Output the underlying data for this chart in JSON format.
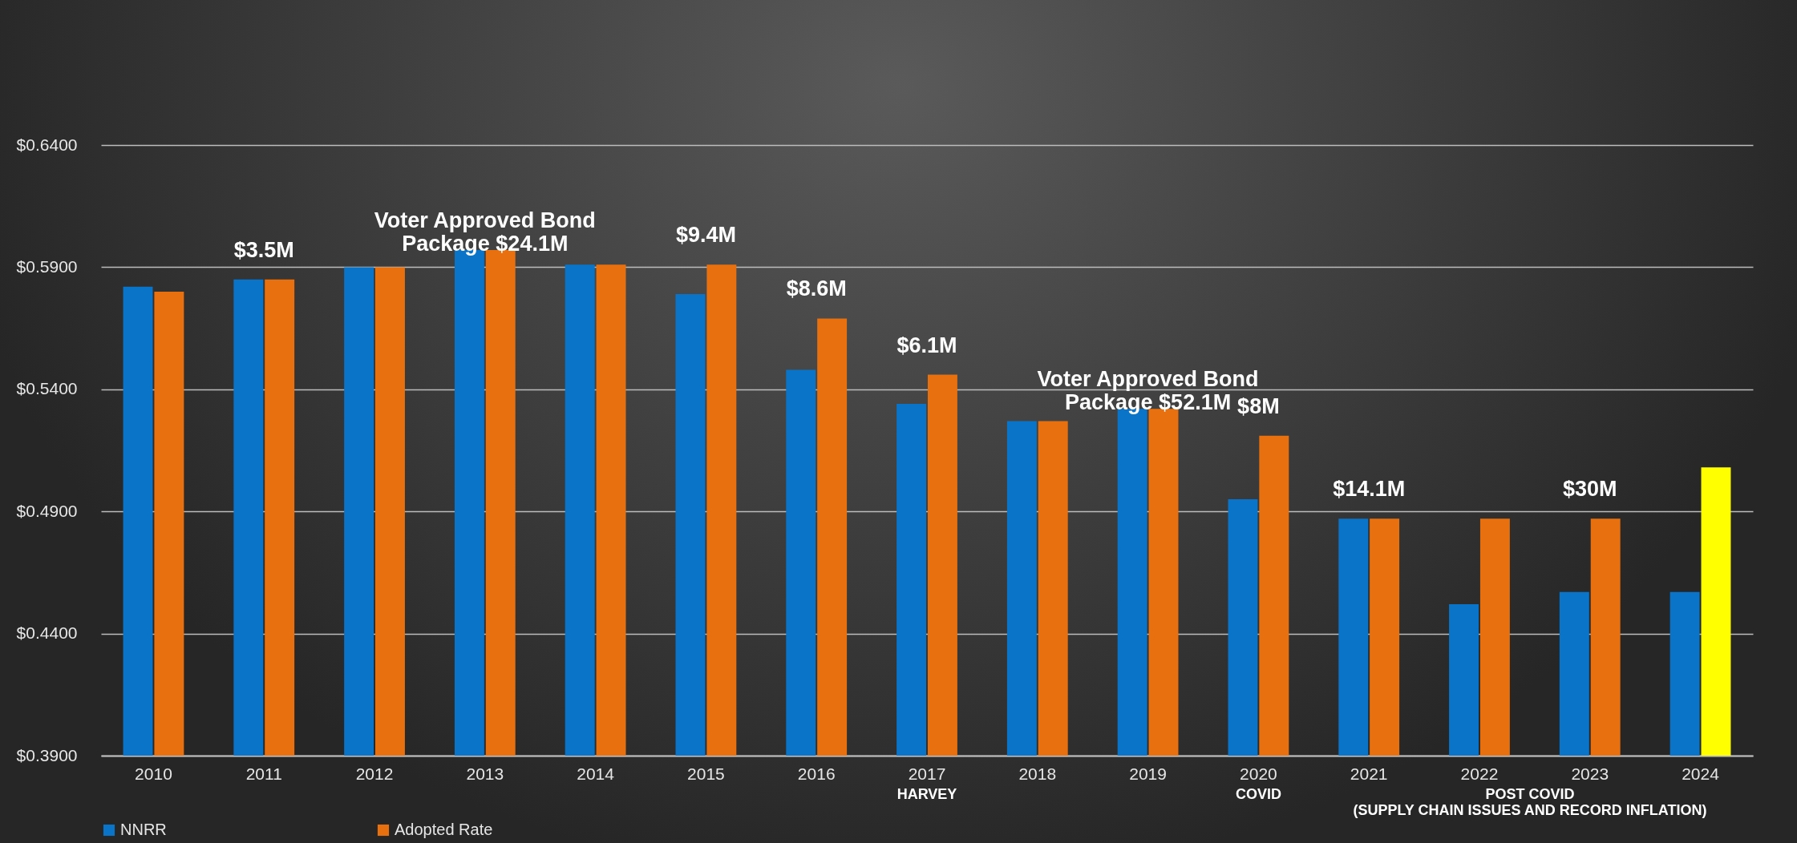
{
  "chart_data": {
    "type": "bar",
    "categories": [
      "2010",
      "2011",
      "2012",
      "2013",
      "2014",
      "2015",
      "2016",
      "2017",
      "2018",
      "2019",
      "2020",
      "2021",
      "2022",
      "2023",
      "2024"
    ],
    "series": [
      {
        "name": "NNRR",
        "color": "#0a74c9",
        "values": [
          0.582,
          0.585,
          0.59,
          0.597,
          0.591,
          0.579,
          0.548,
          0.534,
          0.527,
          0.532,
          0.495,
          0.487,
          0.452,
          0.457,
          0.457
        ]
      },
      {
        "name": "Adopted Rate",
        "color": "#e8700f",
        "colors": [
          "#e8700f",
          "#e8700f",
          "#e8700f",
          "#e8700f",
          "#e8700f",
          "#e8700f",
          "#e8700f",
          "#e8700f",
          "#e8700f",
          "#e8700f",
          "#e8700f",
          "#e8700f",
          "#e8700f",
          "#e8700f",
          "#ffff00"
        ],
        "values": [
          0.58,
          0.585,
          0.59,
          0.597,
          0.591,
          0.591,
          0.569,
          0.546,
          0.527,
          0.532,
          0.521,
          0.487,
          0.487,
          0.487,
          0.508
        ]
      }
    ],
    "ylim": [
      0.39,
      0.64
    ],
    "yticks": [
      {
        "value": 0.39,
        "label": "$0.3900"
      },
      {
        "value": 0.44,
        "label": "$0.4400"
      },
      {
        "value": 0.49,
        "label": "$0.4900"
      },
      {
        "value": 0.54,
        "label": "$0.5400"
      },
      {
        "value": 0.59,
        "label": "$0.5900"
      },
      {
        "value": 0.64,
        "label": "$0.6400"
      }
    ],
    "grid": "y",
    "legend": "bottom",
    "annotations": [
      {
        "text": "$3.5M",
        "x": "2011",
        "y": 0.585
      },
      {
        "text": "Voter Approved Bond\nPackage $24.1M",
        "x": "2013",
        "y": 0.597
      },
      {
        "text": "$9.4M",
        "x": "2015",
        "y": 0.591
      },
      {
        "text": "$8.6M",
        "x": "2016",
        "y": 0.569
      },
      {
        "text": "$6.1M",
        "x": "2017",
        "y": 0.546
      },
      {
        "text": "Voter Approved Bond\nPackage $52.1M",
        "x": "2019",
        "y": 0.532
      },
      {
        "text": "$8M",
        "x": "2020",
        "y": 0.521
      },
      {
        "text": "$14.1M",
        "x": "2021",
        "y": 0.487
      },
      {
        "text": "$30M",
        "x": "2023",
        "y": 0.487
      },
      {
        "text": "HARVEY",
        "x": "2017"
      },
      {
        "text": "COVID",
        "x": "2020"
      },
      "POST COVID\n(SUPPLY CHAIN ISSUES AND RECORD INFLATION)"
    ]
  }
}
